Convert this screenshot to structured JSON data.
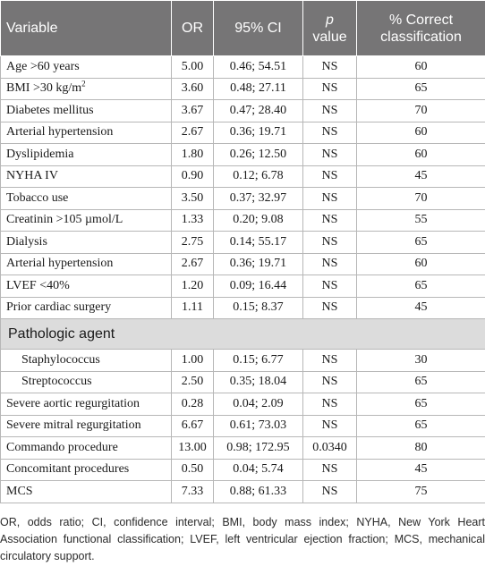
{
  "headers": {
    "variable": "Variable",
    "or": "OR",
    "ci": "95% CI",
    "p_italic": "p",
    "p_value": "value",
    "correct_line1": "% Correct",
    "correct_line2": "classification"
  },
  "rows_a": [
    {
      "variable": "Age >60 years",
      "or": "5.00",
      "ci": "0.46; 54.51",
      "p": "NS",
      "correct": "60"
    },
    {
      "variable": "BMI >30 kg/m",
      "sup": "2",
      "or": "3.60",
      "ci": "0.48; 27.11",
      "p": "NS",
      "correct": "65"
    },
    {
      "variable": "Diabetes mellitus",
      "or": "3.67",
      "ci": "0.47; 28.40",
      "p": "NS",
      "correct": "70"
    },
    {
      "variable": "Arterial hypertension",
      "or": "2.67",
      "ci": "0.36; 19.71",
      "p": "NS",
      "correct": "60"
    },
    {
      "variable": "Dyslipidemia",
      "or": "1.80",
      "ci": "0.26; 12.50",
      "p": "NS",
      "correct": "60"
    },
    {
      "variable": "NYHA IV",
      "or": "0.90",
      "ci": "0.12; 6.78",
      "p": "NS",
      "correct": "45"
    },
    {
      "variable": "Tobacco use",
      "or": "3.50",
      "ci": "0.37; 32.97",
      "p": "NS",
      "correct": "70"
    },
    {
      "variable": "Creatinin >105 µmol/L",
      "or": "1.33",
      "ci": "0.20; 9.08",
      "p": "NS",
      "correct": "55"
    },
    {
      "variable": "Dialysis",
      "or": "2.75",
      "ci": "0.14; 55.17",
      "p": "NS",
      "correct": "65"
    },
    {
      "variable": "Arterial hypertension",
      "or": "2.67",
      "ci": "0.36; 19.71",
      "p": "NS",
      "correct": "60"
    },
    {
      "variable": "LVEF <40%",
      "or": "1.20",
      "ci": "0.09; 16.44",
      "p": "NS",
      "correct": "65"
    },
    {
      "variable": "Prior cardiac surgery",
      "or": "1.11",
      "ci": "0.15; 8.37",
      "p": "NS",
      "correct": "45"
    }
  ],
  "section_label": "Pathologic agent",
  "rows_b": [
    {
      "variable": "Staphylococcus",
      "or": "1.00",
      "ci": "0.15; 6.77",
      "p": "NS",
      "correct": "30"
    },
    {
      "variable": "Streptococcus",
      "or": "2.50",
      "ci": "0.35; 18.04",
      "p": "NS",
      "correct": "65"
    }
  ],
  "rows_c": [
    {
      "variable": "Severe aortic regurgitation",
      "or": "0.28",
      "ci": "0.04; 2.09",
      "p": "NS",
      "correct": "65"
    },
    {
      "variable": "Severe mitral regurgitation",
      "or": "6.67",
      "ci": "0.61; 73.03",
      "p": "NS",
      "correct": "65"
    },
    {
      "variable": "Commando procedure",
      "or": "13.00",
      "ci": "0.98; 172.95",
      "p": "0.0340",
      "correct": "80"
    },
    {
      "variable": "Concomitant procedures",
      "or": "0.50",
      "ci": "0.04; 5.74",
      "p": "NS",
      "correct": "45"
    },
    {
      "variable": "MCS",
      "or": "7.33",
      "ci": "0.88; 61.33",
      "p": "NS",
      "correct": "75"
    }
  ],
  "footnote": "OR, odds ratio; CI, confidence interval; BMI, body mass index; NYHA, New York Heart Association functional classification; LVEF, left ventricular ejection fraction; MCS, mechanical circulatory support."
}
